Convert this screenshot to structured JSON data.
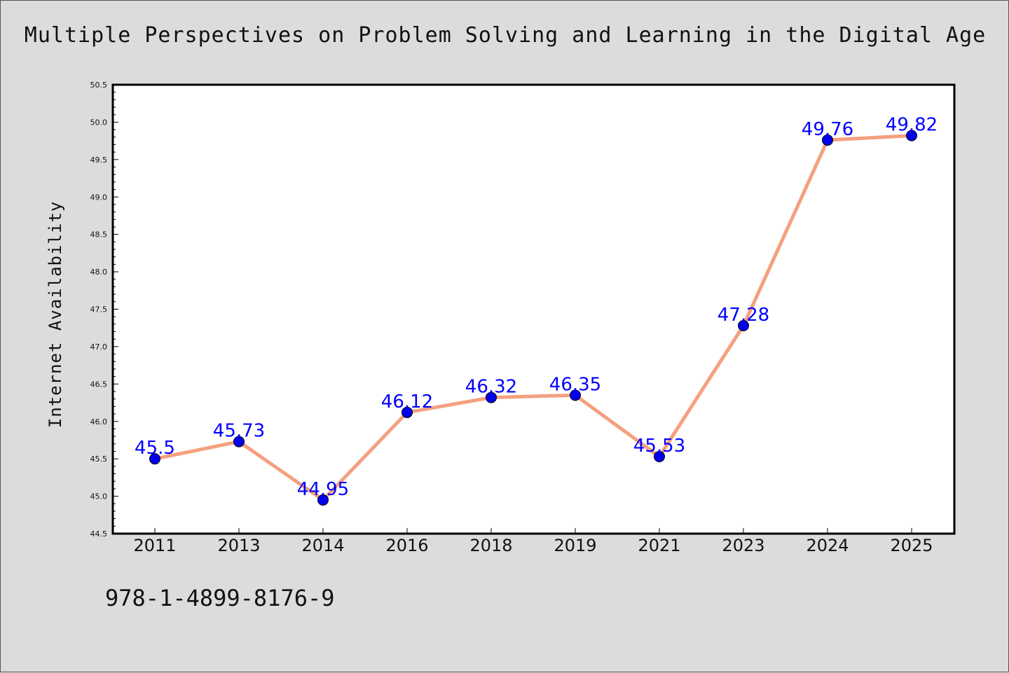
{
  "figure": {
    "title": "Multiple Perspectives on Problem Solving and Learning in the Digital Age",
    "isbn": "978-1-4899-8176-9"
  },
  "chart_data": {
    "type": "line",
    "title": "Multiple Perspectives on Problem Solving and Learning in the Digital Age",
    "xlabel": "",
    "ylabel": "Internet Availability",
    "categories": [
      "2011",
      "2013",
      "2014",
      "2016",
      "2018",
      "2019",
      "2021",
      "2023",
      "2024",
      "2025"
    ],
    "series": [
      {
        "values": [
          45.5,
          45.73,
          44.95,
          46.12,
          46.32,
          46.35,
          45.53,
          47.28,
          49.76,
          49.82
        ],
        "data_labels": [
          "45.5",
          "45.73",
          "44.95",
          "46.12",
          "46.32",
          "46.35",
          "45.53",
          "47.28",
          "49.76",
          "49.82"
        ]
      }
    ],
    "ylim": [
      44.5,
      50.5
    ],
    "yticks": [
      "44.5",
      "45.0",
      "45.5",
      "46.0",
      "46.5",
      "47.0",
      "47.5",
      "48.0",
      "48.5",
      "49.0",
      "49.5",
      "50.0",
      "50.5"
    ],
    "grid": false,
    "legend": "none",
    "colors": {
      "line": "#f4a07f",
      "marker": "#0000ee",
      "data_label": "#0000ff",
      "background": "#dcdcdc",
      "plot_background": "#ffffff"
    }
  }
}
